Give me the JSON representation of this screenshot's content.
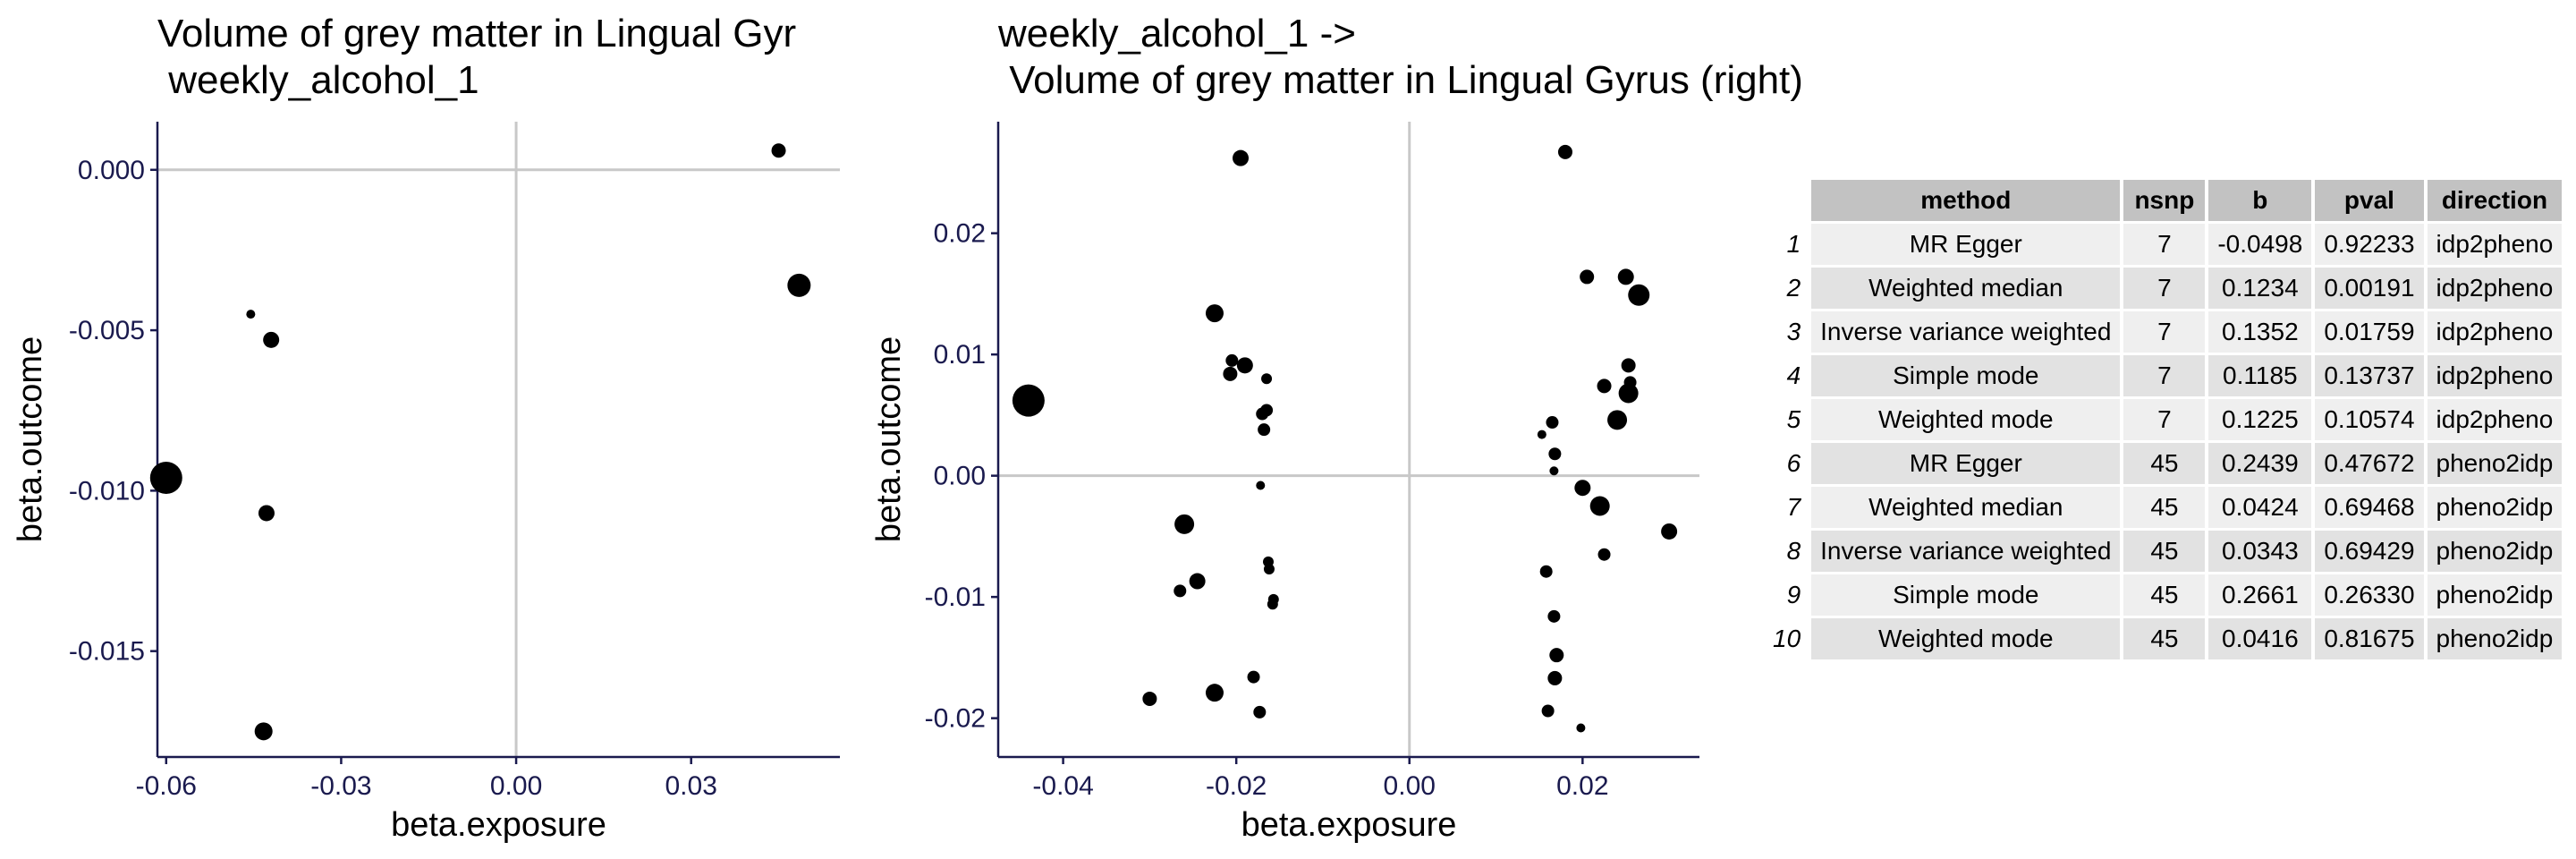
{
  "chart_data": [
    {
      "type": "scatter",
      "title": "Volume of grey matter in Lingual Gyr\n weekly_alcohol_1",
      "xlabel": "beta.exposure",
      "ylabel": "beta.outcome",
      "xlim": [
        -0.0615,
        0.0555
      ],
      "ylim": [
        -0.0183,
        0.0015
      ],
      "xticks": [
        -0.06,
        -0.03,
        0.0,
        0.03
      ],
      "xtick_labels": [
        "-0.06",
        "-0.03",
        "0.00",
        "0.03"
      ],
      "yticks": [
        0.0,
        -0.005,
        -0.01,
        -0.015
      ],
      "ytick_labels": [
        "0.000",
        "-0.005",
        "-0.010",
        "-0.015"
      ],
      "grid": "zero-lines",
      "points": [
        {
          "x": -0.06,
          "y": -0.0096,
          "size": 18
        },
        {
          "x": -0.0455,
          "y": -0.0045,
          "size": 5
        },
        {
          "x": -0.042,
          "y": -0.0053,
          "size": 9
        },
        {
          "x": -0.0428,
          "y": -0.0107,
          "size": 9
        },
        {
          "x": -0.0433,
          "y": -0.0175,
          "size": 10
        },
        {
          "x": 0.045,
          "y": 0.0006,
          "size": 8
        },
        {
          "x": 0.0485,
          "y": -0.0036,
          "size": 13
        }
      ]
    },
    {
      "type": "scatter",
      "title": "weekly_alcohol_1 ->\n Volume of grey matter in Lingual Gyrus (right)",
      "xlabel": "beta.exposure",
      "ylabel": "beta.outcome",
      "xlim": [
        -0.0475,
        0.0335
      ],
      "ylim": [
        -0.0232,
        0.0292
      ],
      "xticks": [
        -0.04,
        -0.02,
        0.0,
        0.02
      ],
      "xtick_labels": [
        "-0.04",
        "-0.02",
        "0.00",
        "0.02"
      ],
      "yticks": [
        0.02,
        0.01,
        0.0,
        -0.01,
        -0.02
      ],
      "ytick_labels": [
        "0.02",
        "0.01",
        "0.00",
        "-0.01",
        "-0.02"
      ],
      "grid": "zero-lines",
      "points": [
        {
          "x": -0.044,
          "y": 0.0062,
          "size": 18
        },
        {
          "x": -0.0195,
          "y": 0.0262,
          "size": 9
        },
        {
          "x": -0.0225,
          "y": 0.0134,
          "size": 10
        },
        {
          "x": -0.0205,
          "y": 0.0095,
          "size": 7
        },
        {
          "x": -0.019,
          "y": 0.0091,
          "size": 9
        },
        {
          "x": -0.0207,
          "y": 0.0084,
          "size": 8
        },
        {
          "x": -0.0165,
          "y": 0.008,
          "size": 6
        },
        {
          "x": -0.0165,
          "y": 0.0054,
          "size": 7
        },
        {
          "x": -0.017,
          "y": 0.0051,
          "size": 7
        },
        {
          "x": -0.0168,
          "y": 0.0038,
          "size": 7
        },
        {
          "x": -0.0172,
          "y": -0.0008,
          "size": 5
        },
        {
          "x": -0.026,
          "y": -0.004,
          "size": 11
        },
        {
          "x": -0.0245,
          "y": -0.0087,
          "size": 9
        },
        {
          "x": -0.0265,
          "y": -0.0095,
          "size": 7
        },
        {
          "x": -0.0163,
          "y": -0.0071,
          "size": 6
        },
        {
          "x": -0.0162,
          "y": -0.0077,
          "size": 6
        },
        {
          "x": -0.0157,
          "y": -0.0102,
          "size": 6
        },
        {
          "x": -0.0158,
          "y": -0.0106,
          "size": 6
        },
        {
          "x": -0.018,
          "y": -0.0166,
          "size": 7
        },
        {
          "x": -0.0225,
          "y": -0.0179,
          "size": 10
        },
        {
          "x": -0.03,
          "y": -0.0184,
          "size": 8
        },
        {
          "x": -0.0173,
          "y": -0.0195,
          "size": 7
        },
        {
          "x": 0.018,
          "y": 0.0267,
          "size": 8
        },
        {
          "x": 0.0205,
          "y": 0.0164,
          "size": 8
        },
        {
          "x": 0.025,
          "y": 0.0164,
          "size": 9
        },
        {
          "x": 0.0265,
          "y": 0.0149,
          "size": 12
        },
        {
          "x": 0.0253,
          "y": 0.0091,
          "size": 8
        },
        {
          "x": 0.0255,
          "y": 0.0077,
          "size": 7
        },
        {
          "x": 0.0225,
          "y": 0.0074,
          "size": 8
        },
        {
          "x": 0.0253,
          "y": 0.0068,
          "size": 11
        },
        {
          "x": 0.024,
          "y": 0.0046,
          "size": 11
        },
        {
          "x": 0.0165,
          "y": 0.0044,
          "size": 7
        },
        {
          "x": 0.0153,
          "y": 0.0034,
          "size": 5
        },
        {
          "x": 0.0168,
          "y": 0.0018,
          "size": 7
        },
        {
          "x": 0.0167,
          "y": 0.0004,
          "size": 5
        },
        {
          "x": 0.02,
          "y": -0.001,
          "size": 9
        },
        {
          "x": 0.022,
          "y": -0.0025,
          "size": 11
        },
        {
          "x": 0.03,
          "y": -0.0046,
          "size": 9
        },
        {
          "x": 0.0225,
          "y": -0.0065,
          "size": 7
        },
        {
          "x": 0.0158,
          "y": -0.0079,
          "size": 7
        },
        {
          "x": 0.0167,
          "y": -0.0116,
          "size": 7
        },
        {
          "x": 0.017,
          "y": -0.0148,
          "size": 8
        },
        {
          "x": 0.0168,
          "y": -0.0167,
          "size": 8
        },
        {
          "x": 0.016,
          "y": -0.0194,
          "size": 7
        },
        {
          "x": 0.0198,
          "y": -0.0208,
          "size": 5
        }
      ]
    },
    {
      "type": "table",
      "columns": [
        "method",
        "nsnp",
        "b",
        "pval",
        "direction"
      ],
      "rows": [
        {
          "id": "1",
          "method": "MR Egger",
          "nsnp": "7",
          "b": "-0.0498",
          "pval": "0.92233",
          "direction": "idp2pheno"
        },
        {
          "id": "2",
          "method": "Weighted median",
          "nsnp": "7",
          "b": "0.1234",
          "pval": "0.00191",
          "direction": "idp2pheno"
        },
        {
          "id": "3",
          "method": "Inverse variance weighted",
          "nsnp": "7",
          "b": "0.1352",
          "pval": "0.01759",
          "direction": "idp2pheno"
        },
        {
          "id": "4",
          "method": "Simple mode",
          "nsnp": "7",
          "b": "0.1185",
          "pval": "0.13737",
          "direction": "idp2pheno"
        },
        {
          "id": "5",
          "method": "Weighted mode",
          "nsnp": "7",
          "b": "0.1225",
          "pval": "0.10574",
          "direction": "idp2pheno"
        },
        {
          "id": "6",
          "method": "MR Egger",
          "nsnp": "45",
          "b": "0.2439",
          "pval": "0.47672",
          "direction": "pheno2idp"
        },
        {
          "id": "7",
          "method": "Weighted median",
          "nsnp": "45",
          "b": "0.0424",
          "pval": "0.69468",
          "direction": "pheno2idp"
        },
        {
          "id": "8",
          "method": "Inverse variance weighted",
          "nsnp": "45",
          "b": "0.0343",
          "pval": "0.69429",
          "direction": "pheno2idp"
        },
        {
          "id": "9",
          "method": "Simple mode",
          "nsnp": "45",
          "b": "0.2661",
          "pval": "0.26330",
          "direction": "pheno2idp"
        },
        {
          "id": "10",
          "method": "Weighted mode",
          "nsnp": "45",
          "b": "0.0416",
          "pval": "0.81675",
          "direction": "pheno2idp"
        }
      ]
    }
  ]
}
